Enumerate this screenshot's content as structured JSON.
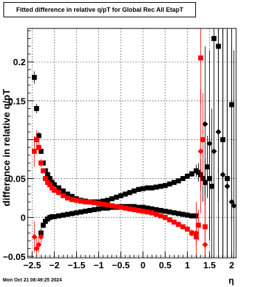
{
  "title": "Fitted difference in relative q/pT for Global Rec All EtapT",
  "footer_timestamp": "Mon Oct 21 08:49:25 2024",
  "chart_data": {
    "type": "scatter",
    "title": "Fitted difference in relative q/pT for Global Rec All EtapT",
    "xlabel": "η",
    "ylabel": "difference in relative q/pT",
    "xlim": [
      -2.6,
      2.1
    ],
    "ylim": [
      -0.052,
      0.243
    ],
    "xticks": [
      -2.5,
      -2,
      -1.5,
      -1,
      -0.5,
      0,
      0.5,
      1,
      1.5,
      2
    ],
    "xtick_labels": [
      "−2.5",
      "−2",
      "−1.5",
      "−1",
      "−0.5",
      "0",
      "0.5",
      "1",
      "1.5",
      "2"
    ],
    "yticks": [
      -0.05,
      0,
      0.05,
      0.1,
      0.15,
      0.2
    ],
    "ytick_labels": [
      "−0.05",
      "0",
      "0.05",
      "0.15",
      "0.2"
    ],
    "ytick_label_values": [
      -0.05,
      0,
      0.05,
      0.15,
      0.2
    ],
    "grid": true,
    "series": [
      {
        "color": "#000000",
        "marker": "square",
        "x": [
          -2.45,
          -2.4,
          -2.35,
          -2.3,
          -2.25,
          -2.2,
          -2.15,
          -2.1,
          -2.05,
          -2.0,
          -1.9,
          -1.8,
          -1.7,
          -1.6,
          -1.5,
          -1.4,
          -1.3,
          -1.2,
          -1.1,
          -1.0,
          -0.9,
          -0.8,
          -0.7,
          -0.6,
          -0.5,
          -0.4,
          -0.3,
          -0.2,
          -0.1,
          0.0,
          0.1,
          0.2,
          0.3,
          0.4,
          0.5,
          0.6,
          0.7,
          0.8,
          0.9,
          1.0,
          1.1,
          1.2,
          1.25,
          1.3,
          1.35,
          1.4,
          1.45,
          1.5,
          1.55,
          1.6,
          1.7,
          1.8,
          1.9,
          2.0
        ],
        "y": [
          0.18,
          0.14,
          0.105,
          0.085,
          0.07,
          0.06,
          0.055,
          0.05,
          0.045,
          0.042,
          0.038,
          0.034,
          0.03,
          0.027,
          0.024,
          0.022,
          0.021,
          0.02,
          0.02,
          0.02,
          0.021,
          0.022,
          0.024,
          0.026,
          0.028,
          0.03,
          0.032,
          0.034,
          0.036,
          0.037,
          0.038,
          0.038,
          0.039,
          0.04,
          0.041,
          0.043,
          0.045,
          0.047,
          0.05,
          0.053,
          0.056,
          0.06,
          0.058,
          0.055,
          0.05,
          0.045,
          0.065,
          0.05,
          0.04,
          0.23,
          0.22,
          0.1,
          0.05,
          0.145
        ],
        "y_err": [
          0.008,
          0.006,
          0.005,
          0.003,
          0.002,
          0.002,
          0.001,
          0.001,
          0.001,
          0.001,
          0.001,
          0.001,
          0.001,
          0.001,
          0.001,
          0.001,
          0.001,
          0.001,
          0.001,
          0.001,
          0.001,
          0.001,
          0.001,
          0.001,
          0.001,
          0.001,
          0.001,
          0.001,
          0.001,
          0.001,
          0.001,
          0.001,
          0.001,
          0.001,
          0.001,
          0.001,
          0.001,
          0.001,
          0.002,
          0.003,
          0.004,
          0.008,
          0.012,
          0.02,
          0.03,
          0.03,
          0.04,
          0.08,
          0.1,
          0.15,
          0.2,
          0.2,
          0.2,
          0.15
        ]
      },
      {
        "color": "#000000",
        "marker": "square",
        "x": [
          -2.3,
          -2.25,
          -2.2,
          -2.15,
          -2.1,
          -2.05,
          -2.0,
          -1.9,
          -1.8,
          -1.7,
          -1.6,
          -1.5,
          -1.4,
          -1.3,
          -1.2,
          -1.1,
          -1.0,
          -0.9,
          -0.8,
          -0.7,
          -0.6,
          -0.5,
          -0.4,
          -0.3,
          -0.2,
          -0.1,
          0.0,
          0.1,
          0.2,
          0.3,
          0.4,
          0.5,
          0.6,
          0.7,
          0.8,
          0.9,
          1.0,
          1.1,
          1.2
        ],
        "y": [
          -0.02,
          -0.01,
          -0.005,
          -0.002,
          0.0,
          0.001,
          0.001,
          0.002,
          0.003,
          0.004,
          0.005,
          0.006,
          0.007,
          0.008,
          0.009,
          0.01,
          0.011,
          0.012,
          0.012,
          0.013,
          0.013,
          0.014,
          0.014,
          0.014,
          0.014,
          0.013,
          0.013,
          0.012,
          0.011,
          0.01,
          0.009,
          0.008,
          0.007,
          0.006,
          0.005,
          0.004,
          0.003,
          0.002,
          0.002
        ],
        "y_err": [
          0.006,
          0.004,
          0.003,
          0.002,
          0.001,
          0.001,
          0.001,
          0.001,
          0.001,
          0.001,
          0.001,
          0.001,
          0.001,
          0.001,
          0.001,
          0.001,
          0.001,
          0.001,
          0.001,
          0.001,
          0.001,
          0.001,
          0.001,
          0.001,
          0.001,
          0.001,
          0.001,
          0.001,
          0.001,
          0.001,
          0.001,
          0.001,
          0.001,
          0.001,
          0.001,
          0.001,
          0.001,
          0.001,
          0.001
        ]
      },
      {
        "color": "#000000",
        "marker": "diamond",
        "x": [
          1.4,
          1.5,
          1.6,
          1.7,
          1.8,
          1.9,
          2.0,
          2.05
        ],
        "y": [
          0.12,
          0.095,
          0.085,
          0.11,
          0.055,
          0.04,
          0.02,
          0.015
        ],
        "y_err": [
          0.1,
          0.12,
          0.15,
          0.2,
          0.2,
          0.2,
          0.2,
          0.2
        ]
      },
      {
        "color": "#ff0000",
        "marker": "square",
        "x": [
          -2.45,
          -2.4,
          -2.35,
          -2.3,
          -2.25,
          -2.2,
          -2.15,
          -2.1,
          -2.05,
          -2.0,
          -1.9,
          -1.8,
          -1.7,
          -1.6,
          -1.5,
          -1.4,
          -1.3,
          -1.2,
          -1.1,
          -1.0,
          -0.9,
          -0.8,
          -0.7,
          -0.6,
          -0.5,
          -0.4,
          -0.3,
          -0.2,
          -0.1,
          0.0,
          0.1,
          0.2,
          0.3,
          0.4,
          0.5,
          0.6,
          0.7,
          0.8,
          0.9,
          1.0,
          1.1,
          1.2,
          1.25,
          1.3,
          1.35,
          1.4
        ],
        "y": [
          0.085,
          0.1,
          0.09,
          0.07,
          0.06,
          0.05,
          0.045,
          0.042,
          0.038,
          0.035,
          0.032,
          0.028,
          0.025,
          0.023,
          0.022,
          0.021,
          0.02,
          0.02,
          0.019,
          0.018,
          0.017,
          0.016,
          0.015,
          0.014,
          0.013,
          0.012,
          0.011,
          0.01,
          0.009,
          0.008,
          0.007,
          0.006,
          0.004,
          0.002,
          0.0,
          -0.003,
          -0.006,
          -0.009,
          -0.012,
          -0.015,
          -0.02,
          -0.025,
          -0.01,
          0.205,
          0.1,
          -0.012
        ],
        "y_err": [
          0.02,
          0.012,
          0.008,
          0.005,
          0.003,
          0.002,
          0.002,
          0.001,
          0.001,
          0.001,
          0.001,
          0.001,
          0.001,
          0.001,
          0.001,
          0.001,
          0.001,
          0.001,
          0.001,
          0.001,
          0.001,
          0.001,
          0.001,
          0.001,
          0.001,
          0.001,
          0.001,
          0.001,
          0.001,
          0.001,
          0.001,
          0.001,
          0.001,
          0.001,
          0.001,
          0.001,
          0.001,
          0.001,
          0.002,
          0.003,
          0.005,
          0.01,
          0.02,
          0.06,
          0.06,
          0.04
        ]
      },
      {
        "color": "#ff0000",
        "marker": "diamond",
        "x": [
          -2.45,
          -2.4,
          -2.35,
          -2.3,
          1.2,
          1.3,
          1.4
        ],
        "y": [
          -0.025,
          -0.04,
          -0.035,
          -0.025,
          -0.02,
          0.085,
          -0.035
        ],
        "y_err": [
          0.02,
          0.015,
          0.01,
          0.008,
          0.04,
          0.08,
          0.06
        ]
      }
    ]
  }
}
